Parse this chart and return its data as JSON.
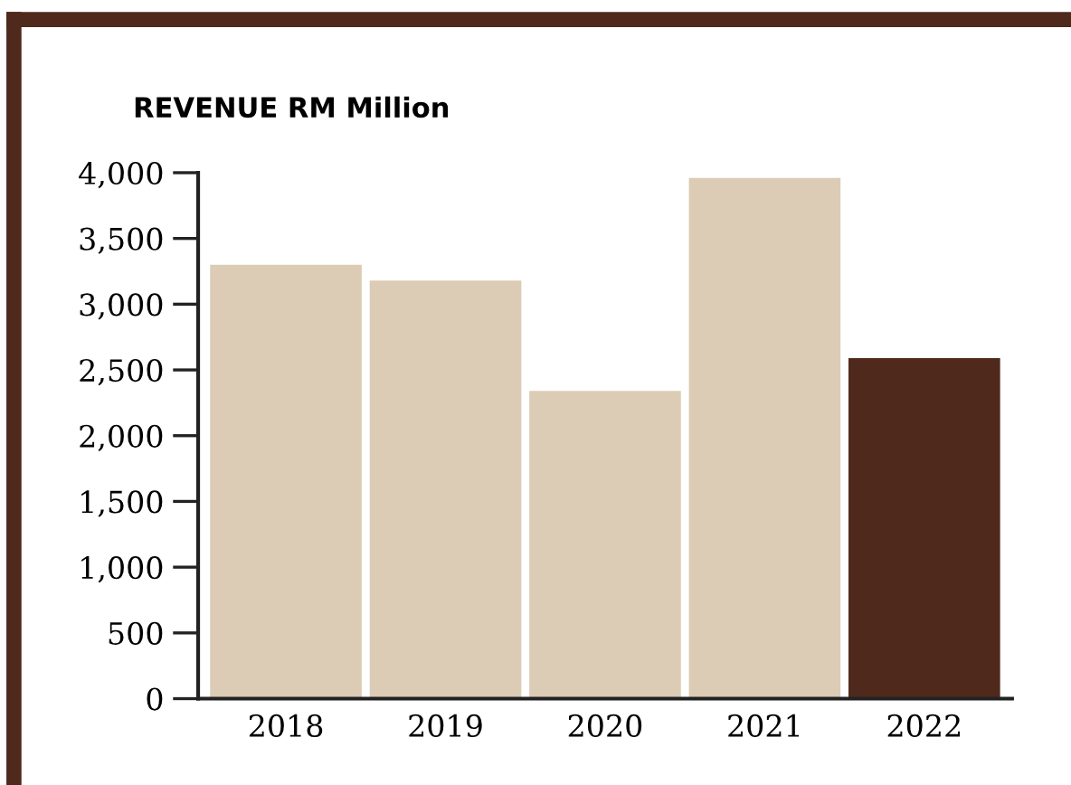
{
  "chart_data": {
    "type": "bar",
    "title": "REVENUE RM Million",
    "categories": [
      "2018",
      "2019",
      "2020",
      "2021",
      "2022"
    ],
    "values": [
      3300,
      3180,
      2340,
      3960,
      2590
    ],
    "colors": [
      "#dccbb5",
      "#dccbb5",
      "#dccbb5",
      "#dccbb5",
      "#4e291c"
    ],
    "ylim": [
      0,
      4000
    ],
    "yticks": [
      {
        "value": 0,
        "label": "0"
      },
      {
        "value": 500,
        "label": "500"
      },
      {
        "value": 1000,
        "label": "1,000"
      },
      {
        "value": 1500,
        "label": "1,500"
      },
      {
        "value": 2000,
        "label": "2,000"
      },
      {
        "value": 2500,
        "label": "2,500"
      },
      {
        "value": 3000,
        "label": "3,000"
      },
      {
        "value": 3500,
        "label": "3,500"
      },
      {
        "value": 4000,
        "label": "4,000"
      }
    ],
    "grid": false
  }
}
